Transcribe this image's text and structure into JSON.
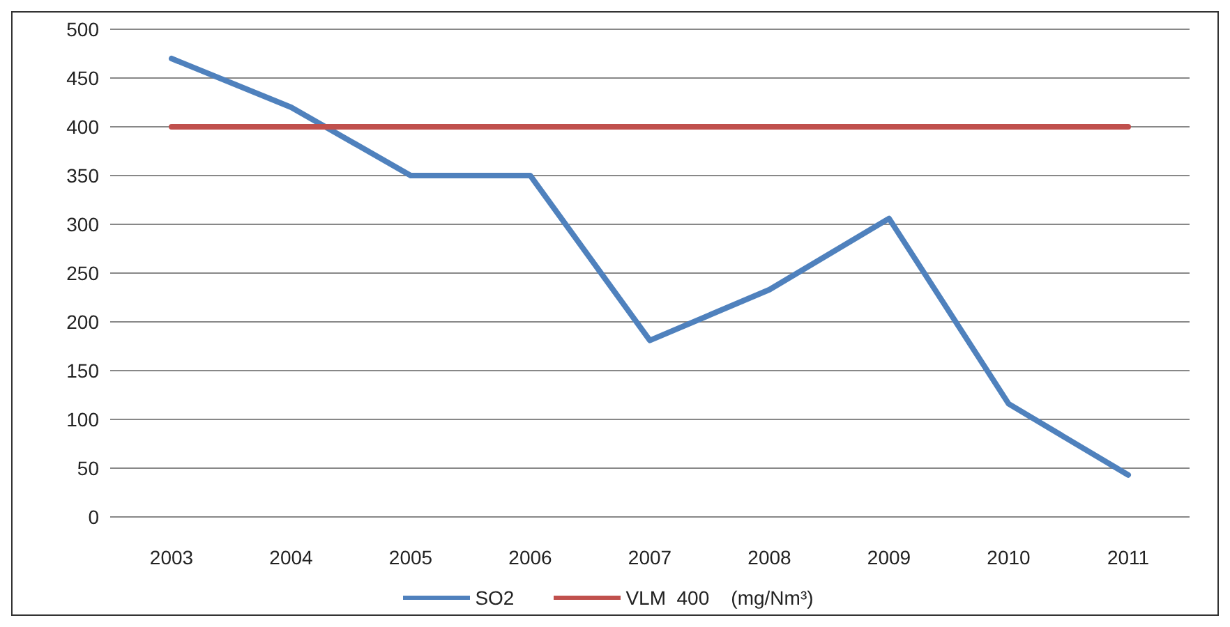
{
  "chart_data": {
    "type": "line",
    "categories": [
      "2003",
      "2004",
      "2005",
      "2006",
      "2007",
      "2008",
      "2009",
      "2010",
      "2011"
    ],
    "series": [
      {
        "name": "SO2",
        "color": "#4f81bd",
        "values": [
          470,
          420,
          350,
          350,
          181,
          233,
          306,
          116,
          43
        ]
      },
      {
        "name": "VLM  400    (mg/Nm³)",
        "color": "#c0504d",
        "values": [
          400,
          400,
          400,
          400,
          400,
          400,
          400,
          400,
          400
        ]
      }
    ],
    "ylim": [
      0,
      500
    ],
    "yticks": [
      0,
      50,
      100,
      150,
      200,
      250,
      300,
      350,
      400,
      450,
      500
    ],
    "grid": "y",
    "legend": "bottom",
    "marker": "none",
    "line_style": "solid"
  }
}
